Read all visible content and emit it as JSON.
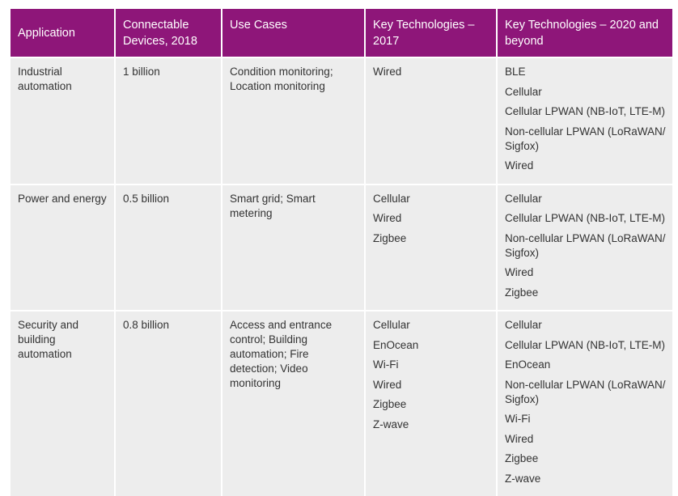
{
  "table": {
    "headers": [
      "Application",
      "Connectable Devices, 2018",
      "Use Cases",
      "Key  Technologies – 2017",
      "Key  Technologies – 2020 and beyond"
    ],
    "rows": [
      {
        "application": "Industrial automation",
        "devices": "1 billion",
        "use_cases": "Condition monitoring; Location monitoring",
        "tech_2017": [
          "Wired"
        ],
        "tech_2020": [
          "BLE",
          "Cellular",
          "Cellular LPWAN (NB-IoT, LTE-M)",
          "Non-cellular LPWAN (LoRaWAN/ Sigfox)",
          "Wired"
        ]
      },
      {
        "application": "Power and energy",
        "devices": "0.5 billion",
        "use_cases": "Smart grid; Smart metering",
        "tech_2017": [
          "Cellular",
          "Wired",
          "Zigbee"
        ],
        "tech_2020": [
          "Cellular",
          "Cellular LPWAN (NB-IoT, LTE-M)",
          "Non-cellular LPWAN (LoRaWAN/ Sigfox)",
          "Wired",
          "Zigbee"
        ]
      },
      {
        "application": "Security and building automation",
        "devices": "0.8 billion",
        "use_cases": "Access and entrance control; Building automation; Fire detection; Video monitoring",
        "tech_2017": [
          "Cellular",
          "EnOcean",
          "Wi-Fi",
          "Wired",
          "Zigbee",
          "Z-wave"
        ],
        "tech_2020": [
          "Cellular",
          "Cellular LPWAN (NB-IoT, LTE-M)",
          "EnOcean",
          "Non-cellular LPWAN (LoRaWAN/ Sigfox)",
          "Wi-Fi",
          "Wired",
          "Zigbee",
          "Z-wave"
        ]
      }
    ]
  },
  "colors": {
    "header_bg": "#8e1679",
    "header_text": "#ffffff",
    "cell_bg": "#ededed",
    "cell_text": "#333333"
  }
}
